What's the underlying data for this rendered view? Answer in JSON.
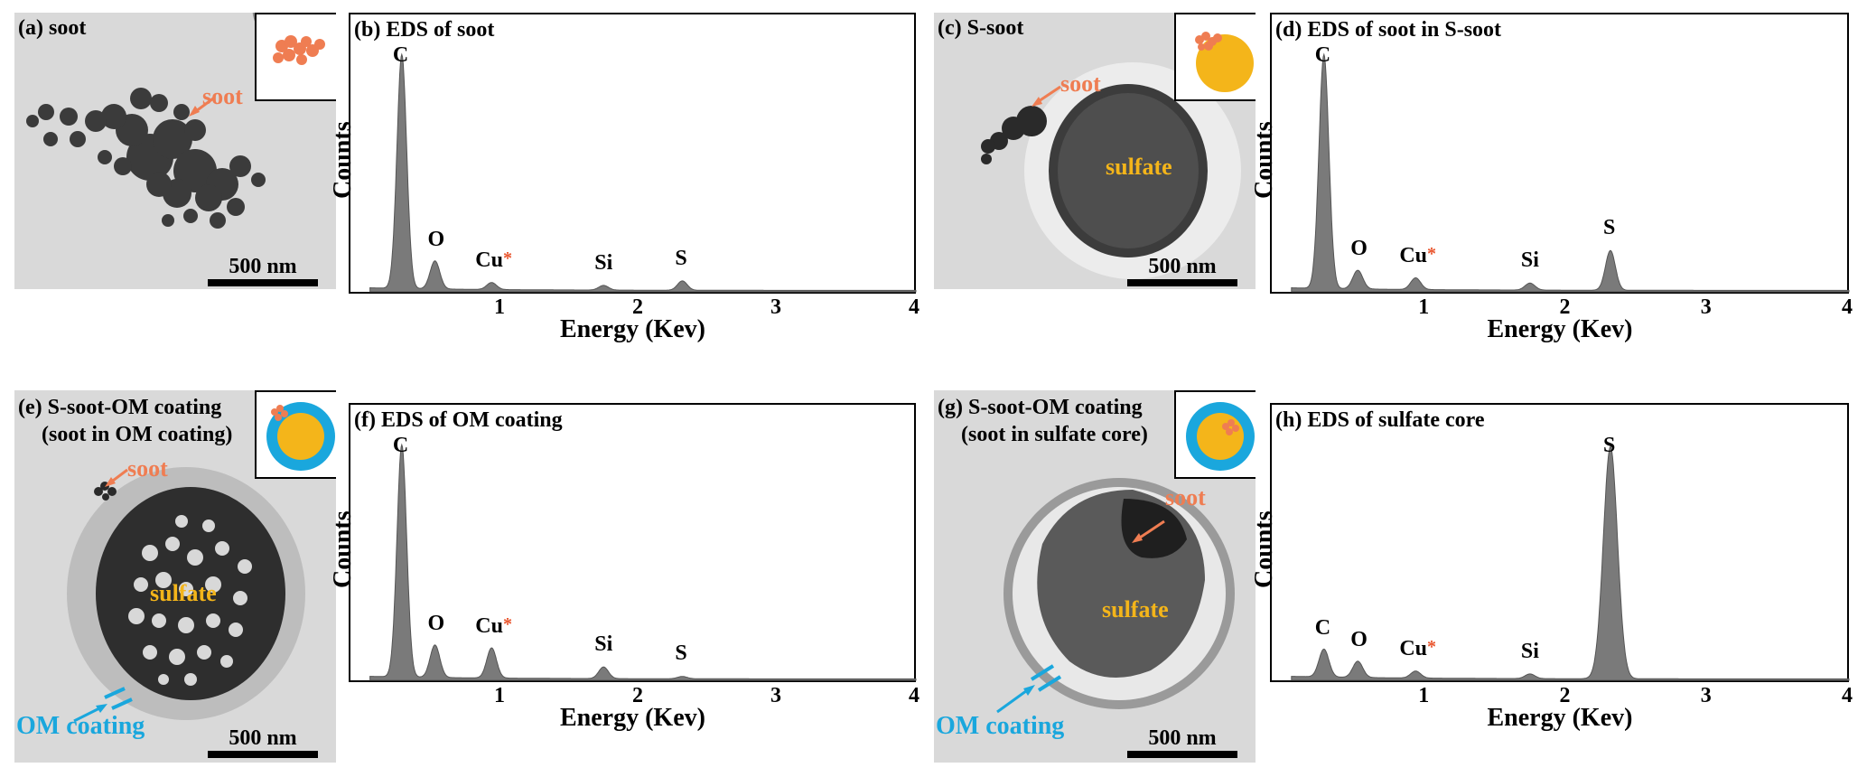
{
  "colors": {
    "soot": "#ef7d52",
    "sulfate": "#f4b51a",
    "om_coating": "#1aa7dd",
    "tem_bg": "#d9d9d9",
    "spectrum_fill": "#7a7a7a"
  },
  "panels": {
    "a": {
      "label": "(a) soot",
      "annotations": {
        "soot": "soot"
      },
      "scale_bar": "500 nm"
    },
    "c": {
      "label": "(c) S-soot",
      "annotations": {
        "soot": "soot",
        "sulfate": "sulfate"
      },
      "scale_bar": "500 nm"
    },
    "e": {
      "label": "(e) S-soot-OM coating",
      "label2": "(soot in OM coating)",
      "annotations": {
        "soot": "soot",
        "sulfate": "sulfate",
        "om": "OM coating"
      },
      "scale_bar": "500 nm"
    },
    "g": {
      "label": "(g) S-soot-OM coating",
      "label2": "(soot in sulfate core)",
      "annotations": {
        "soot": "soot",
        "sulfate": "sulfate",
        "om": "OM coating"
      },
      "scale_bar": "500 nm"
    }
  },
  "axis_text": {
    "xlabel": "Energy (Kev)",
    "ylabel": "Counts",
    "ticks": [
      "1",
      "2",
      "3",
      "4"
    ],
    "cu_marker": "*"
  },
  "chart_data": [
    {
      "type": "area",
      "title": "(b) EDS of soot",
      "xlabel": "Energy (Kev)",
      "ylabel": "Counts",
      "xlim": [
        0,
        4
      ],
      "xticks": [
        1,
        2,
        3,
        4
      ],
      "peaks": [
        {
          "element": "C",
          "energy": 0.28,
          "intensity": 100
        },
        {
          "element": "O",
          "energy": 0.52,
          "intensity": 12
        },
        {
          "element": "Cu",
          "energy": 0.93,
          "intensity": 3
        },
        {
          "element": "Si",
          "energy": 1.74,
          "intensity": 2
        },
        {
          "element": "S",
          "energy": 2.31,
          "intensity": 4
        }
      ]
    },
    {
      "type": "area",
      "title": "(d) EDS of soot in S-soot",
      "xlabel": "Energy (Kev)",
      "ylabel": "Counts",
      "xlim": [
        0,
        4
      ],
      "xticks": [
        1,
        2,
        3,
        4
      ],
      "peaks": [
        {
          "element": "C",
          "energy": 0.28,
          "intensity": 100
        },
        {
          "element": "O",
          "energy": 0.52,
          "intensity": 8
        },
        {
          "element": "Cu",
          "energy": 0.93,
          "intensity": 5
        },
        {
          "element": "Si",
          "energy": 1.74,
          "intensity": 3
        },
        {
          "element": "S",
          "energy": 2.31,
          "intensity": 17
        }
      ]
    },
    {
      "type": "area",
      "title": "(f) EDS of OM coating",
      "xlabel": "Energy (Kev)",
      "ylabel": "Counts",
      "xlim": [
        0,
        4
      ],
      "xticks": [
        1,
        2,
        3,
        4
      ],
      "peaks": [
        {
          "element": "C",
          "energy": 0.28,
          "intensity": 100
        },
        {
          "element": "O",
          "energy": 0.52,
          "intensity": 14
        },
        {
          "element": "Cu",
          "energy": 0.93,
          "intensity": 13
        },
        {
          "element": "Si",
          "energy": 1.74,
          "intensity": 5
        },
        {
          "element": "S",
          "energy": 2.31,
          "intensity": 1
        }
      ]
    },
    {
      "type": "area",
      "title": "(h) EDS of sulfate core",
      "xlabel": "Energy (Kev)",
      "ylabel": "Counts",
      "xlim": [
        0,
        4
      ],
      "xticks": [
        1,
        2,
        3,
        4
      ],
      "peaks": [
        {
          "element": "C",
          "energy": 0.28,
          "intensity": 12
        },
        {
          "element": "O",
          "energy": 0.52,
          "intensity": 7
        },
        {
          "element": "Cu",
          "energy": 0.93,
          "intensity": 3
        },
        {
          "element": "Si",
          "energy": 1.74,
          "intensity": 2
        },
        {
          "element": "S",
          "energy": 2.31,
          "intensity": 100
        }
      ]
    }
  ]
}
